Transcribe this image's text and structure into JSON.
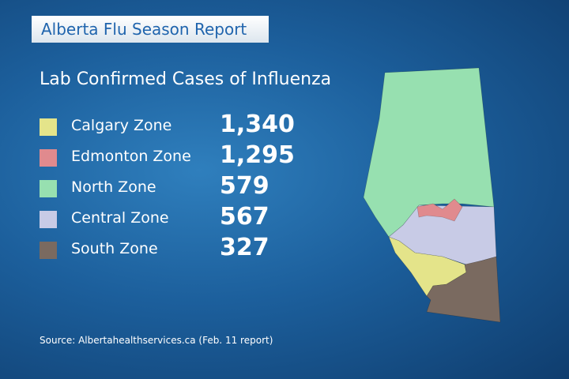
{
  "header": {
    "title": "Alberta Flu Season Report"
  },
  "subtitle": "Lab Confirmed Cases of Influenza",
  "zones": [
    {
      "name": "Calgary Zone",
      "cases": "1,340",
      "color": "#e4e48a"
    },
    {
      "name": "Edmonton Zone",
      "cases": "1,295",
      "color": "#e08a8e"
    },
    {
      "name": "North Zone",
      "cases": "579",
      "color": "#97e0b0"
    },
    {
      "name": "Central Zone",
      "cases": "567",
      "color": "#c8cbe6"
    },
    {
      "name": "South Zone",
      "cases": "327",
      "color": "#7a6a60"
    }
  ],
  "source": "Source: Albertahealthservices.ca (Feb. 11 report)"
}
